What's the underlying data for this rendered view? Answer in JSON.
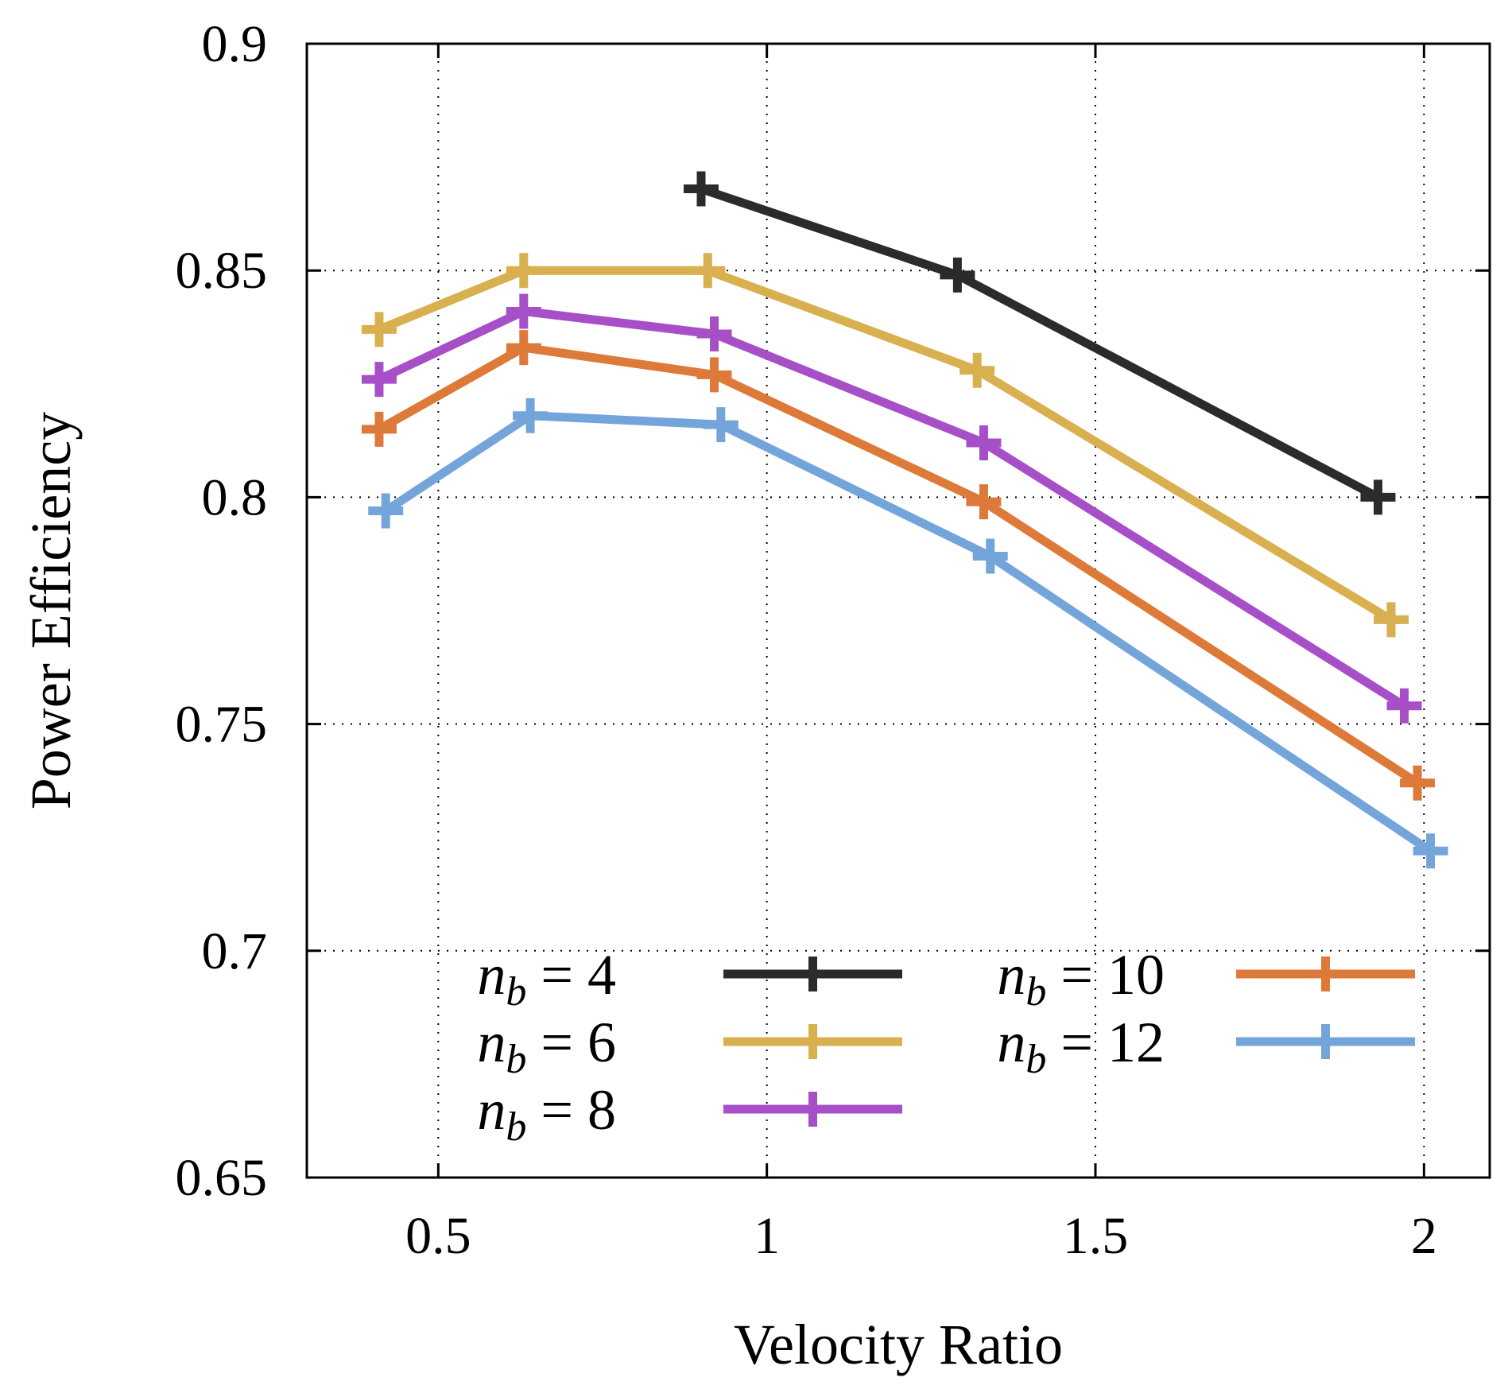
{
  "chart_data": {
    "type": "line",
    "title": "",
    "xlabel": "Velocity Ratio",
    "ylabel": "Power Efficiency",
    "xlim": [
      0.3,
      2.1
    ],
    "ylim": [
      0.65,
      0.9
    ],
    "xticks": [
      0.5,
      1,
      1.5,
      2
    ],
    "xtick_labels": [
      "0.5",
      "1",
      "1.5",
      "2"
    ],
    "yticks": [
      0.65,
      0.7,
      0.75,
      0.8,
      0.85,
      0.9
    ],
    "ytick_labels": [
      "0.65",
      "0.7",
      "0.75",
      "0.8",
      "0.85",
      "0.9"
    ],
    "grid": true,
    "legend_position": "bottom",
    "series": [
      {
        "name": "n_b = 4",
        "var": "n",
        "sub": "b",
        "rhs": "= 4",
        "color": "#2b2b2e",
        "x": [
          0.9,
          1.29,
          1.93
        ],
        "y": [
          0.868,
          0.849,
          0.8
        ]
      },
      {
        "name": "n_b = 6",
        "var": "n",
        "sub": "b",
        "rhs": "= 6",
        "color": "#d9b04f",
        "x": [
          0.41,
          0.63,
          0.91,
          1.32,
          1.95
        ],
        "y": [
          0.837,
          0.85,
          0.85,
          0.828,
          0.773
        ]
      },
      {
        "name": "n_b = 8",
        "var": "n",
        "sub": "b",
        "rhs": "= 8",
        "color": "#a64fc7",
        "x": [
          0.41,
          0.63,
          0.92,
          1.33,
          1.97
        ],
        "y": [
          0.826,
          0.841,
          0.836,
          0.812,
          0.754
        ]
      },
      {
        "name": "n_b = 10",
        "var": "n",
        "sub": "b",
        "rhs": "= 10",
        "color": "#dd7a3a",
        "x": [
          0.41,
          0.63,
          0.92,
          1.33,
          1.99
        ],
        "y": [
          0.815,
          0.833,
          0.827,
          0.799,
          0.737
        ]
      },
      {
        "name": "n_b = 12",
        "var": "n",
        "sub": "b",
        "rhs": "= 12",
        "color": "#74a5da",
        "x": [
          0.42,
          0.64,
          0.93,
          1.34,
          2.01
        ],
        "y": [
          0.797,
          0.818,
          0.816,
          0.787,
          0.722
        ]
      }
    ]
  }
}
